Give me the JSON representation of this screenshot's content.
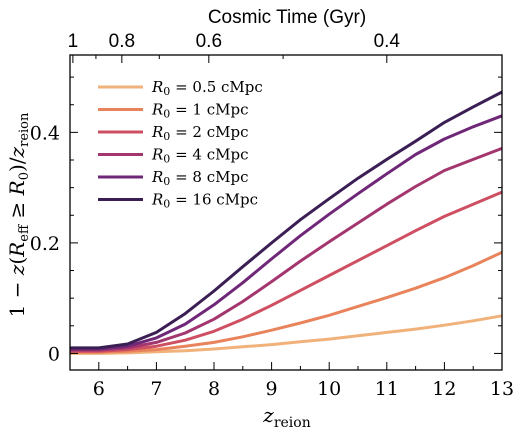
{
  "chart_data": {
    "type": "line",
    "xlabel": "z_reion",
    "xlabel_main": "z",
    "xlabel_sub": "reion",
    "ylabel": "1 − z(R_eff ≥ R0) / z_reion",
    "top_axis_label": "Cosmic Time (Gyr)",
    "xlim": [
      5.5,
      13
    ],
    "ylim": [
      -0.03,
      0.54
    ],
    "x_ticks": [
      6,
      7,
      8,
      9,
      10,
      11,
      12,
      13
    ],
    "y_ticks": [
      0,
      0.2,
      0.4
    ],
    "top_ticks": [
      {
        "label": "1",
        "z": 5.55
      },
      {
        "label": "0.8",
        "z": 6.4
      },
      {
        "label": "0.6",
        "z": 7.91
      },
      {
        "label": "0.4",
        "z": 11.0
      }
    ],
    "legend_position": "top-left",
    "x": [
      5.5,
      6,
      6.5,
      7,
      7.5,
      8,
      8.5,
      9,
      9.5,
      10,
      10.5,
      11,
      11.5,
      12,
      12.5,
      13
    ],
    "series": [
      {
        "name": "R0 = 0.5 cMpc",
        "r0": "0.5",
        "color": "#f0b27a",
        "values": [
          0.0,
          0.0,
          0.001,
          0.003,
          0.005,
          0.008,
          0.012,
          0.016,
          0.021,
          0.026,
          0.032,
          0.038,
          0.044,
          0.051,
          0.059,
          0.068
        ]
      },
      {
        "name": "R0 = 1 cMpc",
        "r0": "1",
        "color": "#e8835c",
        "values": [
          0.002,
          0.002,
          0.004,
          0.007,
          0.013,
          0.02,
          0.03,
          0.042,
          0.055,
          0.069,
          0.085,
          0.101,
          0.118,
          0.137,
          0.159,
          0.183
        ]
      },
      {
        "name": "R0 = 2 cMpc",
        "r0": "2",
        "color": "#cf4f62",
        "values": [
          0.004,
          0.004,
          0.007,
          0.013,
          0.024,
          0.04,
          0.062,
          0.087,
          0.114,
          0.141,
          0.168,
          0.195,
          0.222,
          0.248,
          0.27,
          0.292
        ]
      },
      {
        "name": "R0 = 4 cMpc",
        "r0": "4",
        "color": "#a3366e",
        "values": [
          0.006,
          0.006,
          0.01,
          0.02,
          0.037,
          0.062,
          0.094,
          0.13,
          0.167,
          0.202,
          0.236,
          0.27,
          0.302,
          0.331,
          0.351,
          0.371
        ]
      },
      {
        "name": "R0 = 8 cMpc",
        "r0": "8",
        "color": "#6f2777",
        "values": [
          0.008,
          0.008,
          0.013,
          0.028,
          0.053,
          0.088,
          0.128,
          0.171,
          0.213,
          0.252,
          0.289,
          0.325,
          0.36,
          0.388,
          0.41,
          0.43
        ]
      },
      {
        "name": "R0 = 16 cMpc",
        "r0": "16",
        "color": "#3b1f54",
        "values": [
          0.01,
          0.01,
          0.017,
          0.038,
          0.072,
          0.113,
          0.157,
          0.2,
          0.242,
          0.28,
          0.317,
          0.351,
          0.384,
          0.418,
          0.446,
          0.473
        ]
      }
    ]
  }
}
